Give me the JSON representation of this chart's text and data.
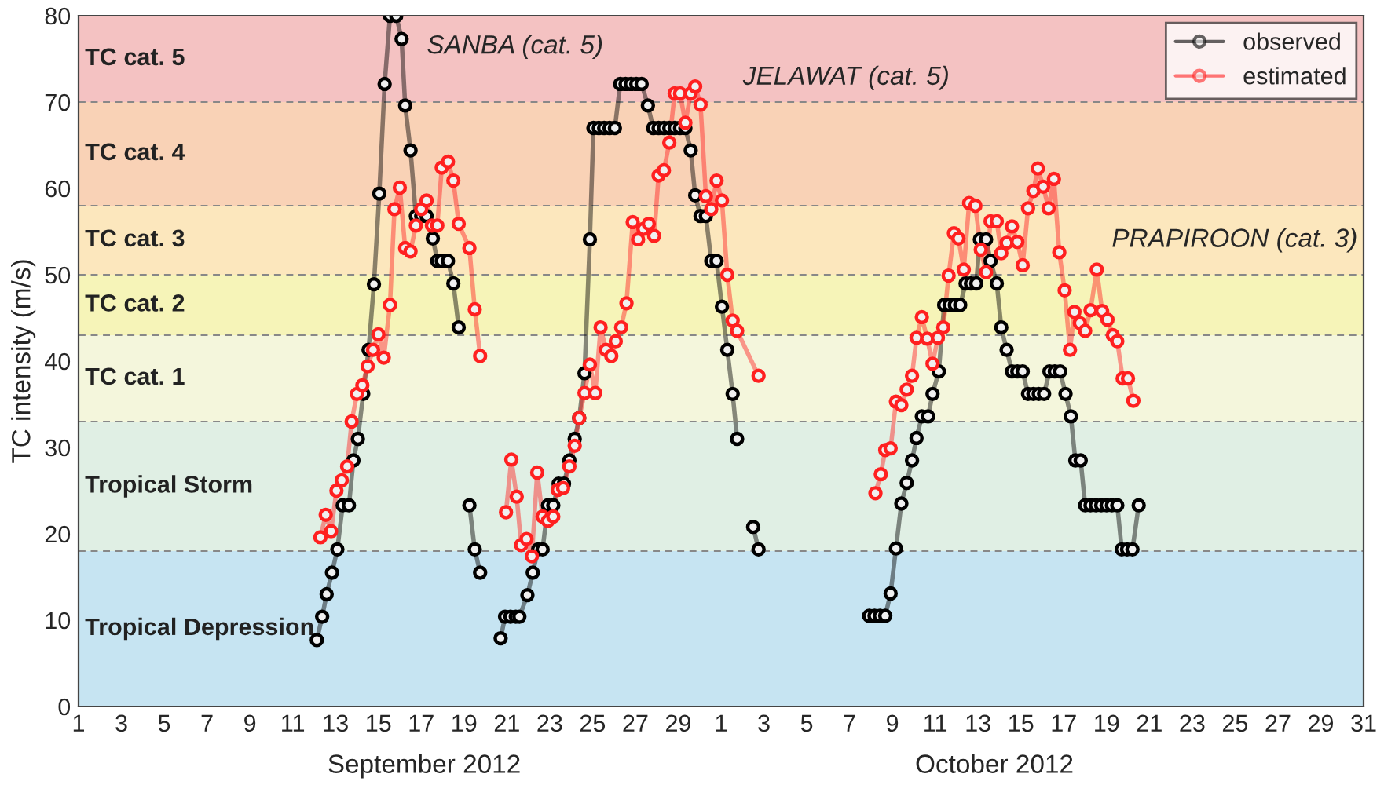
{
  "chart_data": {
    "type": "line",
    "ylabel": "TC intensity (m/s)",
    "xlim": [
      "2012-09-01",
      "2012-10-31"
    ],
    "ylim": [
      0,
      80
    ],
    "xticks": [
      {
        "value": "2012-09-01",
        "label": "1"
      },
      {
        "value": "2012-09-03",
        "label": "3"
      },
      {
        "value": "2012-09-05",
        "label": "5"
      },
      {
        "value": "2012-09-07",
        "label": "7"
      },
      {
        "value": "2012-09-09",
        "label": "9"
      },
      {
        "value": "2012-09-11",
        "label": "11"
      },
      {
        "value": "2012-09-13",
        "label": "13"
      },
      {
        "value": "2012-09-15",
        "label": "15"
      },
      {
        "value": "2012-09-17",
        "label": "17"
      },
      {
        "value": "2012-09-19",
        "label": "19"
      },
      {
        "value": "2012-09-21",
        "label": "21"
      },
      {
        "value": "2012-09-23",
        "label": "23"
      },
      {
        "value": "2012-09-25",
        "label": "25"
      },
      {
        "value": "2012-09-27",
        "label": "27"
      },
      {
        "value": "2012-09-29",
        "label": "29"
      },
      {
        "value": "2012-10-01",
        "label": "1"
      },
      {
        "value": "2012-10-03",
        "label": "3"
      },
      {
        "value": "2012-10-05",
        "label": "5"
      },
      {
        "value": "2012-10-07",
        "label": "7"
      },
      {
        "value": "2012-10-09",
        "label": "9"
      },
      {
        "value": "2012-10-11",
        "label": "11"
      },
      {
        "value": "2012-10-13",
        "label": "13"
      },
      {
        "value": "2012-10-15",
        "label": "15"
      },
      {
        "value": "2012-10-17",
        "label": "17"
      },
      {
        "value": "2012-10-19",
        "label": "19"
      },
      {
        "value": "2012-10-21",
        "label": "21"
      },
      {
        "value": "2012-10-23",
        "label": "23"
      },
      {
        "value": "2012-10-25",
        "label": "25"
      },
      {
        "value": "2012-10-27",
        "label": "27"
      },
      {
        "value": "2012-10-29",
        "label": "29"
      },
      {
        "value": "2012-10-31",
        "label": "31"
      }
    ],
    "yticks": [
      0,
      10,
      20,
      30,
      40,
      50,
      60,
      70,
      80
    ],
    "marker": "circle",
    "line_style": "solid",
    "legend": "top right",
    "series": [
      {
        "name": "observed",
        "color": "#000000",
        "x": [
          "2012-09-12T03:00",
          "2012-09-12T09:00",
          "2012-09-12T14:00",
          "2012-09-12T20:00",
          "2012-09-13T02:00",
          "2012-09-13T08:00",
          "2012-09-13T15:00",
          "2012-09-13T20:00",
          "2012-09-14T01:00",
          "2012-09-14T07:00",
          "2012-09-14T13:00",
          "2012-09-14T19:00",
          "2012-09-15T01:00",
          "2012-09-15T07:00",
          "2012-09-15T13:00",
          "2012-09-15T20:00",
          "2012-09-16T02:00",
          "2012-09-16T06:00",
          "2012-09-16T12:00",
          "2012-09-16T18:00",
          "2012-09-17T00:00",
          "2012-09-17T06:00",
          "2012-09-17T13:00",
          "2012-09-17T18:00",
          "2012-09-17T23:00",
          "2012-09-18T06:00",
          "2012-09-18T12:00",
          "2012-09-18T18:00",
          "2012-09-19T00:00",
          "2012-09-19T06:00",
          "2012-09-19T12:00",
          "2012-09-19T18:00",
          "2012-09-20T05:00",
          "2012-09-20T17:00",
          "2012-09-20T22:00",
          "2012-09-21T04:00",
          "2012-09-21T10:00",
          "2012-09-21T14:00",
          "2012-09-21T23:00",
          "2012-09-22T05:00",
          "2012-09-22T11:00",
          "2012-09-22T16:00",
          "2012-09-22T22:00",
          "2012-09-23T04:00",
          "2012-09-23T10:00",
          "2012-09-23T16:00",
          "2012-09-23T22:00",
          "2012-09-24T04:00",
          "2012-09-24T09:00",
          "2012-09-24T15:00",
          "2012-09-24T21:00",
          "2012-09-25T01:00",
          "2012-09-25T07:00",
          "2012-09-25T13:00",
          "2012-09-25T19:00",
          "2012-09-26T01:00",
          "2012-09-26T07:00",
          "2012-09-26T13:00",
          "2012-09-26T19:00",
          "2012-09-27T01:00",
          "2012-09-27T07:00",
          "2012-09-27T14:00",
          "2012-09-27T20:00",
          "2012-09-28T02:00",
          "2012-09-28T08:00",
          "2012-09-28T14:00",
          "2012-09-28T20:00",
          "2012-09-29T02:00",
          "2012-09-29T08:00",
          "2012-09-29T14:00",
          "2012-09-29T19:00",
          "2012-09-30T01:00",
          "2012-09-30T07:00",
          "2012-09-30T13:00",
          "2012-09-30T19:00",
          "2012-10-01T01:00",
          "2012-10-01T07:00",
          "2012-10-01T13:00",
          "2012-10-01T18:00",
          "2012-10-02T02:00",
          "2012-10-02T12:00",
          "2012-10-02T18:00",
          "2012-10-05T00:00",
          "2012-10-07T22:00",
          "2012-10-08T04:00",
          "2012-10-08T10:00",
          "2012-10-08T16:00",
          "2012-10-08T22:00",
          "2012-10-09T04:00",
          "2012-10-09T10:00",
          "2012-10-09T16:00",
          "2012-10-09T22:00",
          "2012-10-10T03:00",
          "2012-10-10T09:00",
          "2012-10-10T16:00",
          "2012-10-10T21:00",
          "2012-10-11T04:00",
          "2012-10-11T10:00",
          "2012-10-11T16:00",
          "2012-10-11T22:00",
          "2012-10-12T04:00",
          "2012-10-12T10:00",
          "2012-10-12T16:00",
          "2012-10-12T22:00",
          "2012-10-13T02:00",
          "2012-10-13T09:00",
          "2012-10-13T14:00",
          "2012-10-13T21:00",
          "2012-10-14T02:00",
          "2012-10-14T08:00",
          "2012-10-14T14:00",
          "2012-10-14T20:00",
          "2012-10-15T02:00",
          "2012-10-15T08:00",
          "2012-10-15T14:00",
          "2012-10-15T20:00",
          "2012-10-16T02:00",
          "2012-10-16T08:00",
          "2012-10-16T14:00",
          "2012-10-16T20:00",
          "2012-10-17T02:00",
          "2012-10-17T08:00",
          "2012-10-17T13:00",
          "2012-10-17T19:00",
          "2012-10-18T00:00",
          "2012-10-18T06:00",
          "2012-10-18T12:00",
          "2012-10-18T18:00",
          "2012-10-19T00:00",
          "2012-10-19T06:00",
          "2012-10-19T12:00",
          "2012-10-19T17:00",
          "2012-10-19T23:00",
          "2012-10-20T05:00",
          "2012-10-20T12:00"
        ],
        "values": [
          7.7,
          10.4,
          13.0,
          15.5,
          18.2,
          23.3,
          23.3,
          28.5,
          31.0,
          36.2,
          41.3,
          48.9,
          59.4,
          72.1,
          80,
          80,
          77.3,
          69.6,
          64.4,
          56.8,
          56.8,
          56.8,
          54.2,
          51.6,
          51.6,
          51.6,
          49.0,
          43.9,
          null,
          23.3,
          18.2,
          15.5,
          null,
          7.9,
          10.4,
          10.4,
          10.4,
          10.4,
          12.9,
          15.5,
          18.2,
          18.2,
          23.3,
          23.3,
          25.8,
          25.8,
          28.5,
          31.0,
          33.4,
          38.6,
          54.1,
          67,
          67,
          67,
          67,
          67,
          72.1,
          72.1,
          72.1,
          72.1,
          72.1,
          69.6,
          67,
          67,
          67,
          67,
          67,
          67,
          67,
          64.4,
          59.2,
          56.8,
          56.8,
          51.6,
          51.6,
          46.3,
          41.3,
          36.2,
          31.0,
          null,
          20.8,
          18.2,
          null,
          10.5,
          10.5,
          10.5,
          10.5,
          13.1,
          18.3,
          23.5,
          25.9,
          28.5,
          31.1,
          33.6,
          33.6,
          36.2,
          38.8,
          46.5,
          46.5,
          46.5,
          46.5,
          49.0,
          49.0,
          49.0,
          54.1,
          54.1,
          51.6,
          49.0,
          43.9,
          41.3,
          38.8,
          38.8,
          38.8,
          36.2,
          36.2,
          36.2,
          36.2,
          38.8,
          38.8,
          38.8,
          36.2,
          33.6,
          28.5,
          28.5,
          23.3,
          23.3,
          23.3,
          23.3,
          23.3,
          23.3,
          23.3,
          18.2,
          18.2,
          18.2,
          23.3
        ]
      },
      {
        "name": "estimated",
        "color": "#ff2020",
        "x": [
          "2012-09-12T07:00",
          "2012-09-12T13:00",
          "2012-09-12T19:00",
          "2012-09-13T01:00",
          "2012-09-13T07:00",
          "2012-09-13T13:00",
          "2012-09-13T18:00",
          "2012-09-14T00:00",
          "2012-09-14T06:00",
          "2012-09-14T12:00",
          "2012-09-14T18:00",
          "2012-09-15T00:00",
          "2012-09-15T06:00",
          "2012-09-15T13:00",
          "2012-09-15T18:00",
          "2012-09-16T00:00",
          "2012-09-16T06:00",
          "2012-09-16T12:00",
          "2012-09-16T18:00",
          "2012-09-17T00:00",
          "2012-09-17T06:00",
          "2012-09-17T12:00",
          "2012-09-17T18:00",
          "2012-09-17T23:00",
          "2012-09-18T06:00",
          "2012-09-18T12:00",
          "2012-09-18T18:00",
          "2012-09-19T06:00",
          "2012-09-19T12:00",
          "2012-09-19T18:00",
          "2012-09-20T05:00",
          "2012-09-20T23:00",
          "2012-09-21T05:00",
          "2012-09-21T11:00",
          "2012-09-21T16:00",
          "2012-09-21T22:00",
          "2012-09-22T04:00",
          "2012-09-22T10:00",
          "2012-09-22T16:00",
          "2012-09-22T22:00",
          "2012-09-23T04:00",
          "2012-09-23T09:00",
          "2012-09-23T15:00",
          "2012-09-23T22:00",
          "2012-09-24T04:00",
          "2012-09-24T09:00",
          "2012-09-24T15:00",
          "2012-09-24T21:00",
          "2012-09-25T03:00",
          "2012-09-25T09:00",
          "2012-09-25T15:00",
          "2012-09-25T21:00",
          "2012-09-26T02:00",
          "2012-09-26T08:00",
          "2012-09-26T14:00",
          "2012-09-26T21:00",
          "2012-09-27T03:00",
          "2012-09-27T09:00",
          "2012-09-27T15:00",
          "2012-09-27T21:00",
          "2012-09-28T02:00",
          "2012-09-28T08:00",
          "2012-09-28T14:00",
          "2012-09-28T20:00",
          "2012-09-29T02:00",
          "2012-09-29T08:00",
          "2012-09-29T14:00",
          "2012-09-29T19:00",
          "2012-09-30T01:00",
          "2012-09-30T07:00",
          "2012-09-30T13:00",
          "2012-09-30T19:00",
          "2012-10-01T01:00",
          "2012-10-01T07:00",
          "2012-10-01T13:00",
          "2012-10-01T18:00",
          "2012-10-02T18:00",
          "2012-10-05T00:00",
          "2012-10-08T05:00",
          "2012-10-08T11:00",
          "2012-10-08T16:00",
          "2012-10-08T22:00",
          "2012-10-09T04:00",
          "2012-10-09T10:00",
          "2012-10-09T16:00",
          "2012-10-09T22:00",
          "2012-10-10T03:00",
          "2012-10-10T09:00",
          "2012-10-10T15:00",
          "2012-10-10T21:00",
          "2012-10-11T03:00",
          "2012-10-11T09:00",
          "2012-10-11T15:00",
          "2012-10-11T21:00",
          "2012-10-12T02:00",
          "2012-10-12T08:00",
          "2012-10-12T14:00",
          "2012-10-12T21:00",
          "2012-10-13T03:00",
          "2012-10-13T09:00",
          "2012-10-13T14:00",
          "2012-10-13T21:00",
          "2012-10-14T02:00",
          "2012-10-14T08:00",
          "2012-10-14T14:00",
          "2012-10-14T20:00",
          "2012-10-15T02:00",
          "2012-10-15T08:00",
          "2012-10-15T14:00",
          "2012-10-15T19:00",
          "2012-10-16T01:00",
          "2012-10-16T07:00",
          "2012-10-16T13:00",
          "2012-10-16T19:00",
          "2012-10-17T01:00",
          "2012-10-17T07:00",
          "2012-10-17T12:00",
          "2012-10-17T18:00",
          "2012-10-18T00:00",
          "2012-10-18T06:00",
          "2012-10-18T13:00",
          "2012-10-18T19:00",
          "2012-10-19T01:00",
          "2012-10-19T07:00",
          "2012-10-19T12:00",
          "2012-10-19T18:00",
          "2012-10-20T00:00",
          "2012-10-20T06:00"
        ],
        "values": [
          19.6,
          22.2,
          20.3,
          25.0,
          26.2,
          27.8,
          33.0,
          36.2,
          37.2,
          39.4,
          41.3,
          43.1,
          40.4,
          46.5,
          57.6,
          60.1,
          53.1,
          52.7,
          55.7,
          57.6,
          58.6,
          55.7,
          55.7,
          62.4,
          63.1,
          60.9,
          55.9,
          53.1,
          46.0,
          40.6,
          null,
          22.5,
          28.6,
          24.3,
          18.7,
          19.4,
          17.4,
          27.1,
          22.0,
          21.5,
          22.0,
          25.1,
          25.3,
          27.8,
          30.2,
          33.4,
          36.3,
          39.6,
          36.3,
          43.9,
          41.3,
          40.6,
          42.3,
          43.9,
          46.7,
          56.1,
          54.1,
          55.3,
          55.9,
          54.5,
          61.5,
          62.1,
          65.3,
          71.0,
          71.0,
          67.6,
          71.0,
          71.8,
          69.7,
          59.1,
          57.6,
          60.9,
          58.6,
          50.0,
          44.7,
          43.5,
          38.3,
          null,
          24.7,
          26.9,
          29.7,
          29.9,
          35.3,
          34.9,
          36.7,
          38.3,
          42.7,
          45.1,
          42.6,
          39.7,
          42.7,
          43.9,
          49.9,
          54.8,
          54.2,
          50.6,
          58.3,
          58.0,
          52.9,
          50.3,
          56.2,
          56.2,
          52.5,
          53.7,
          55.6,
          53.8,
          51.1,
          57.7,
          59.7,
          62.3,
          60.2,
          57.7,
          61.1,
          52.6,
          48.2,
          41.3,
          45.7,
          44.4,
          43.5,
          45.9,
          50.6,
          45.8,
          44.8,
          43.0,
          42.3,
          38.0,
          38.0,
          35.4
        ]
      }
    ],
    "bands": [
      {
        "axis": "y",
        "from": 0,
        "to": 18,
        "label": "Tropical Depression",
        "color": "#c6e4f2"
      },
      {
        "axis": "y",
        "from": 18,
        "to": 33,
        "label": "Tropical Storm",
        "color": "#e0efe4"
      },
      {
        "axis": "y",
        "from": 33,
        "to": 43,
        "label": "TC cat. 1",
        "color": "#f4f6dc"
      },
      {
        "axis": "y",
        "from": 43,
        "to": 50,
        "label": "TC cat. 2",
        "color": "#f6f4b8"
      },
      {
        "axis": "y",
        "from": 50,
        "to": 58,
        "label": "TC cat. 3",
        "color": "#fce7bd"
      },
      {
        "axis": "y",
        "from": 58,
        "to": 70,
        "label": "TC cat. 4",
        "color": "#f9d2b6"
      },
      {
        "axis": "y",
        "from": 70,
        "to": 80,
        "label": "TC cat. 5",
        "color": "#f4c2c2"
      }
    ],
    "ref_lines": [
      {
        "axis": "y",
        "value": 18,
        "color": "#888888",
        "line_style": "dashed"
      },
      {
        "axis": "y",
        "value": 33,
        "color": "#888888",
        "line_style": "dashed"
      },
      {
        "axis": "y",
        "value": 43,
        "color": "#888888",
        "line_style": "dashed"
      },
      {
        "axis": "y",
        "value": 50,
        "color": "#888888",
        "line_style": "dashed"
      },
      {
        "axis": "y",
        "value": 58,
        "color": "#888888",
        "line_style": "dashed"
      },
      {
        "axis": "y",
        "value": 70,
        "color": "#888888",
        "line_style": "dashed"
      }
    ],
    "annotations": [
      "SANBA (cat. 5)",
      "JELAWAT (cat. 5)",
      "PRAPIROON (cat. 3)",
      "September 2012",
      "October 2012"
    ]
  }
}
